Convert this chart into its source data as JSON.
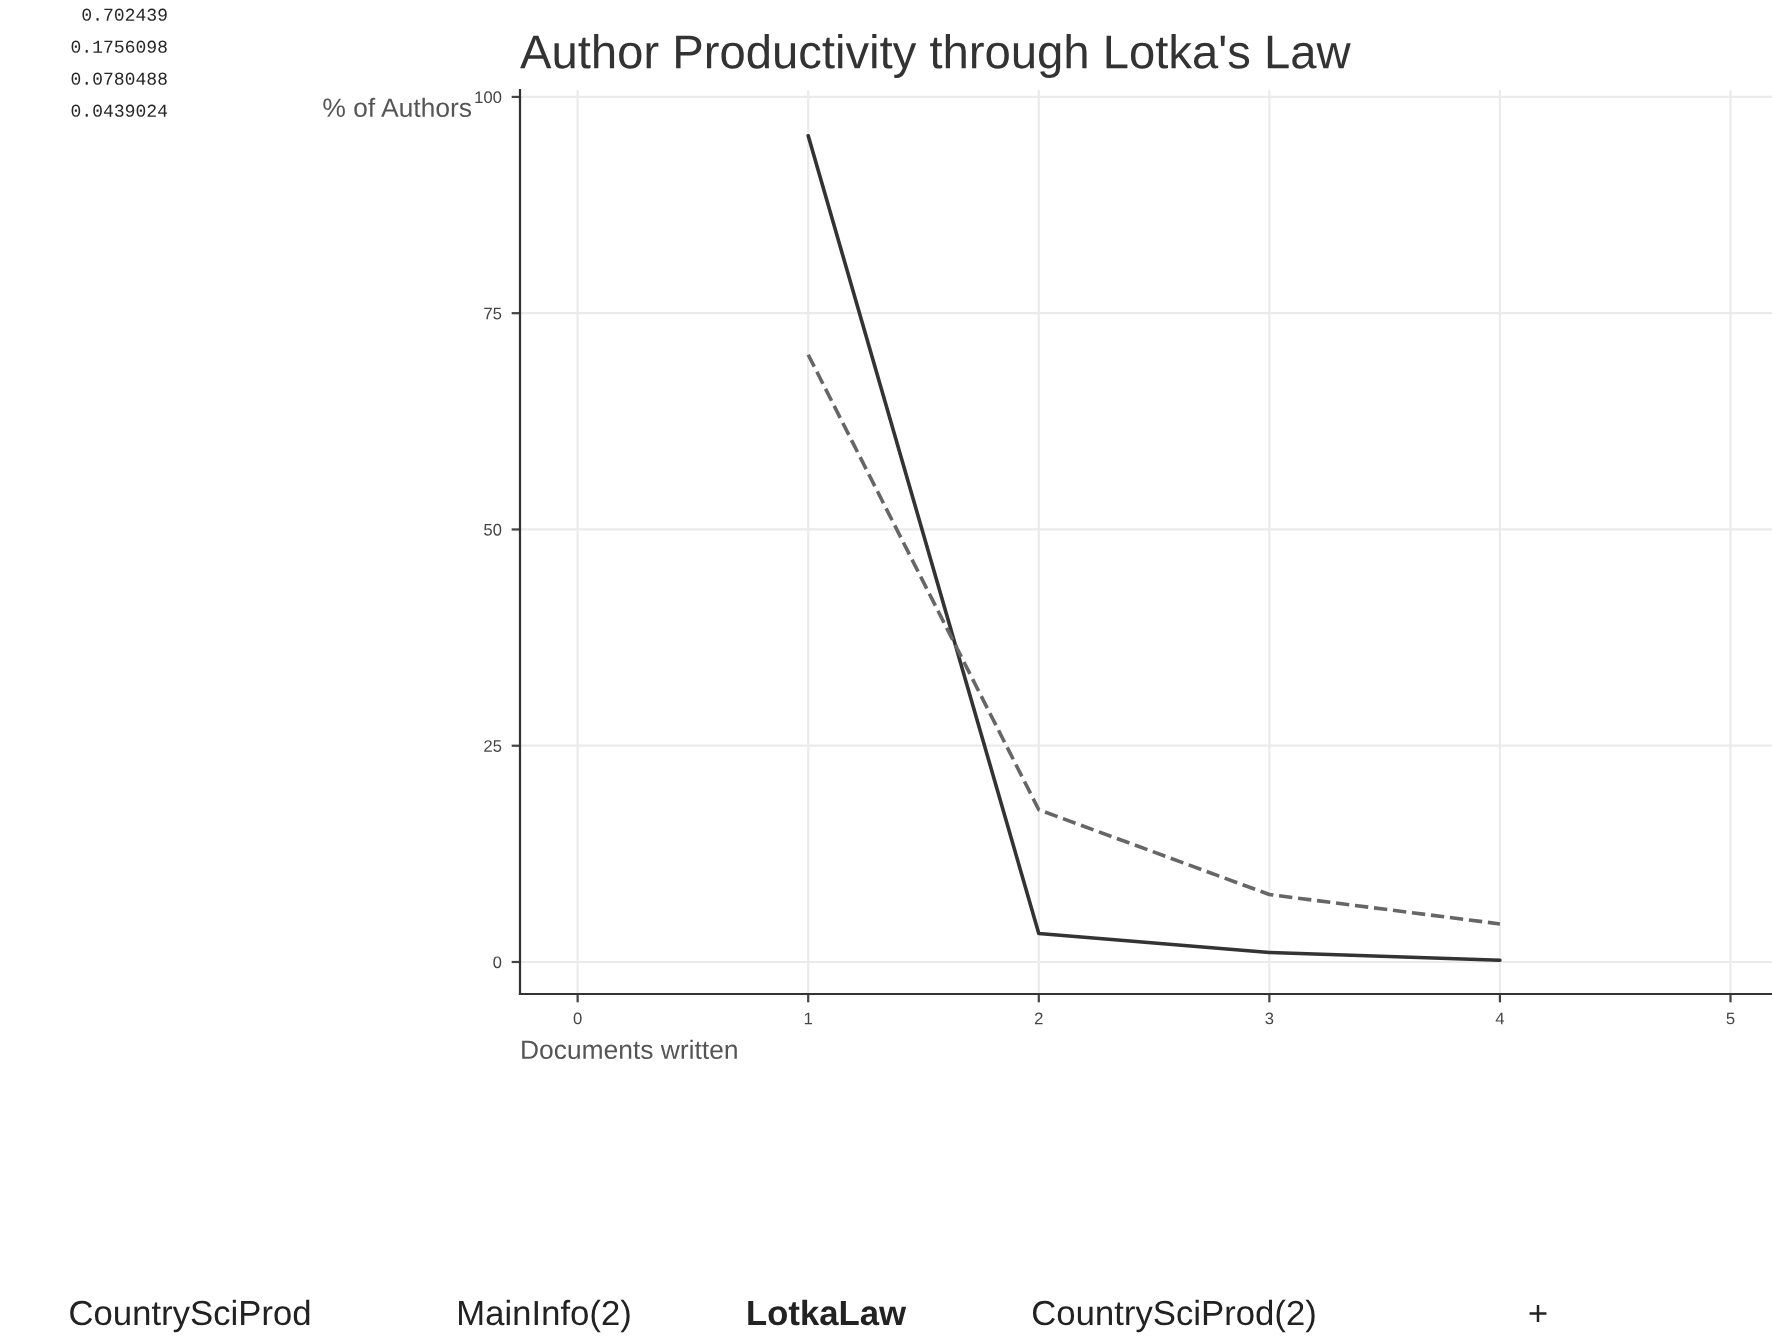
{
  "chart_data": {
    "type": "line",
    "title": "Author Productivity through Lotka's Law",
    "xlabel": "Documents written",
    "ylabel": "% of Authors",
    "x": [
      1,
      2,
      3,
      4
    ],
    "series": [
      {
        "color": "#333333",
        "line_style": "solid",
        "values": [
          95.5,
          3.3,
          1.1,
          0.2
        ]
      },
      {
        "color": "#666666",
        "line_style": "dashed",
        "values": [
          70.2,
          17.6,
          7.8,
          4.4
        ]
      }
    ],
    "xlim": [
      -0.25,
      5.18
    ],
    "ylim": [
      -3.7,
      100.8
    ],
    "xticks": [
      0,
      1,
      2,
      3,
      4,
      5
    ],
    "yticks": [
      0,
      25,
      50,
      75,
      100
    ],
    "grid": true,
    "legend": false,
    "marker": "none",
    "annotations": [
      "0.702439",
      "0.1756098",
      "0.0780488",
      "0.0439024",
      "CountrySciProd",
      "MainInfo(2)",
      "LotkaLaw",
      "CountrySciProd(2)",
      "+"
    ]
  }
}
